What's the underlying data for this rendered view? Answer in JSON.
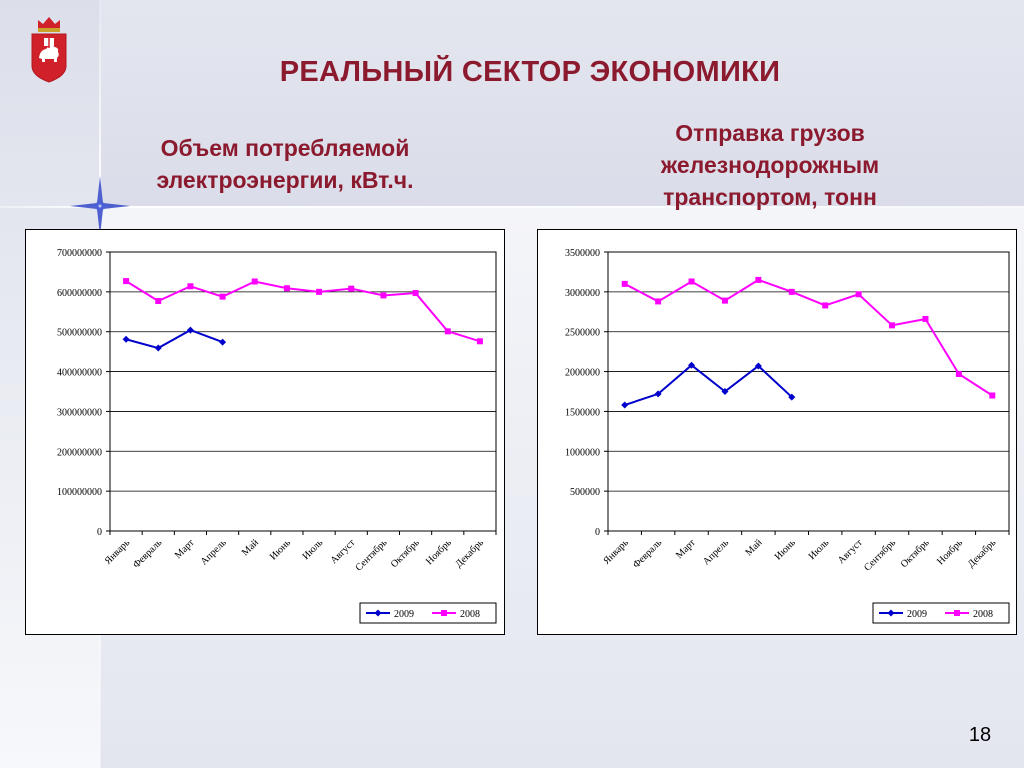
{
  "slide": {
    "title": "РЕАЛЬНЫЙ СЕКТОР ЭКОНОМИКИ",
    "subtitle_left_line1": "Объем потребляемой",
    "subtitle_left_line2": "электроэнергии, кВт.ч.",
    "subtitle_right_line1": "Отправка грузов",
    "subtitle_right_line2": "железнодорожным",
    "subtitle_right_line3": "транспортом, тонн",
    "page_number": "18"
  },
  "colors": {
    "title": "#8b1a2e",
    "series_2009": "#0000cc",
    "series_2008": "#ff00ff",
    "crest_red": "#d0202a"
  },
  "icons": [
    "perm-krai-coat-of-arms-icon",
    "sparkle-decoration"
  ],
  "chart_data": [
    {
      "type": "line",
      "title": "",
      "categories": [
        "Январь",
        "Февраль",
        "Март",
        "Апрель",
        "Май",
        "Июнь",
        "Июль",
        "Август",
        "Сентябрь",
        "Октябрь",
        "Ноябрь",
        "Декабрь"
      ],
      "ylim": [
        0,
        700000000
      ],
      "yticks": [
        0,
        100000000,
        200000000,
        300000000,
        400000000,
        500000000,
        600000000,
        700000000
      ],
      "grid": true,
      "legend": "bottom-right",
      "series": [
        {
          "name": "2009",
          "color": "#0000cc",
          "marker": "diamond",
          "values": [
            481000000,
            459000000,
            504000000,
            474000000,
            null,
            null,
            null,
            null,
            null,
            null,
            null,
            null
          ]
        },
        {
          "name": "2008",
          "color": "#ff00ff",
          "marker": "square",
          "values": [
            627000000,
            577000000,
            614000000,
            588000000,
            626000000,
            609000000,
            600000000,
            608000000,
            591000000,
            597000000,
            501000000,
            476000000
          ]
        }
      ]
    },
    {
      "type": "line",
      "title": "",
      "categories": [
        "Январь",
        "Февраль",
        "Март",
        "Апрель",
        "Май",
        "Июнь",
        "Июль",
        "Август",
        "Сентябрь",
        "Октябрь",
        "Ноябрь",
        "Декабрь"
      ],
      "ylim": [
        0,
        3500000
      ],
      "yticks": [
        0,
        500000,
        1000000,
        1500000,
        2000000,
        2500000,
        3000000,
        3500000
      ],
      "grid": true,
      "legend": "bottom-right",
      "series": [
        {
          "name": "2009",
          "color": "#0000cc",
          "marker": "diamond",
          "values": [
            1580000,
            1720000,
            2080000,
            1750000,
            2070000,
            1680000,
            null,
            null,
            null,
            null,
            null,
            null
          ]
        },
        {
          "name": "2008",
          "color": "#ff00ff",
          "marker": "square",
          "values": [
            3100000,
            2880000,
            3130000,
            2890000,
            3150000,
            3000000,
            2830000,
            2970000,
            2580000,
            2660000,
            1970000,
            1700000
          ]
        }
      ]
    }
  ]
}
